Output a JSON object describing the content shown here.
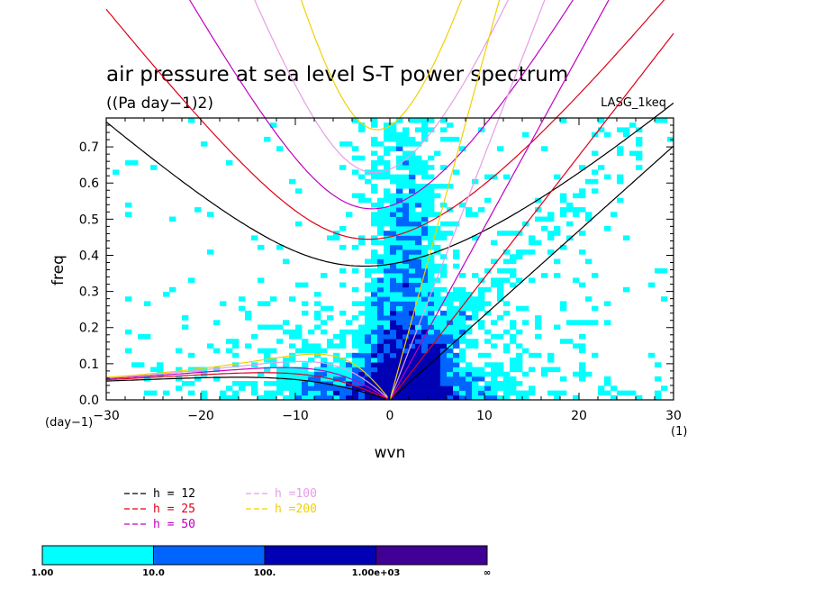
{
  "title": "air pressure at sea level S-T power spectrum",
  "units": "((Pa day−1)2)",
  "model": "LASG_1keq",
  "chart_data": {
    "type": "heatmap",
    "xlabel": "wvn",
    "ylabel": "freq",
    "x_unit_label": "(1)",
    "y_unit_label": "(day−1)",
    "xlim": [
      -30,
      30
    ],
    "ylim": [
      0,
      0.78
    ],
    "x_ticks": [
      "−30",
      "−20",
      "−10",
      "0",
      "10",
      "20",
      "30"
    ],
    "y_ticks": [
      "0.0",
      "0.1",
      "0.2",
      "0.3",
      "0.4",
      "0.5",
      "0.6",
      "0.7"
    ],
    "dispersion_legend": [
      {
        "label": "h = 12",
        "color": "#000000"
      },
      {
        "label": "h = 25",
        "color": "#e0001a"
      },
      {
        "label": "h = 50",
        "color": "#c000c0"
      },
      {
        "label": "h =100",
        "color": "#e59ee5"
      },
      {
        "label": "h =200",
        "color": "#f0d000"
      }
    ],
    "equivalent_depths_m": [
      12,
      25,
      50,
      100,
      200
    ],
    "colorbar": {
      "labels": [
        "1.00",
        "10.0",
        "100.",
        "1.00e+03",
        "∞"
      ],
      "colors": [
        "#00ffff",
        "#0064ff",
        "#0000b4",
        "#400096"
      ]
    },
    "contour_regions": [
      {
        "level": 1,
        "x": [
          -18,
          18
        ],
        "y": [
          0.0,
          0.1
        ]
      },
      {
        "level": 1,
        "x": [
          -3,
          11
        ],
        "y": [
          0.0,
          0.78
        ]
      },
      {
        "level": 2,
        "x": [
          -4,
          7
        ],
        "y": [
          0.0,
          0.3
        ]
      },
      {
        "level": 2,
        "x": [
          -1,
          3
        ],
        "y": [
          0.3,
          0.78
        ]
      },
      {
        "level": 3,
        "x": [
          -1,
          4
        ],
        "y": [
          0.0,
          0.05
        ]
      }
    ]
  }
}
